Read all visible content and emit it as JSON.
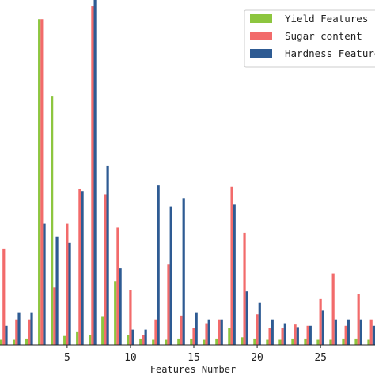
{
  "chart_data": {
    "type": "bar",
    "xlabel": "Features Number",
    "ylabel": "",
    "xlim": [
      -0.3,
      29.3
    ],
    "ylim": [
      0,
      27
    ],
    "xticks": [
      5,
      10,
      15,
      20,
      25
    ],
    "legend": {
      "placement": "top-right"
    },
    "grid": false,
    "series": [
      {
        "name": "Yield Features",
        "color": "#8dc63f",
        "x": [
          0,
          1,
          2,
          3,
          4,
          5,
          6,
          7,
          8,
          9,
          10,
          11,
          12,
          13,
          14,
          15,
          16,
          17,
          18,
          19,
          20,
          21,
          22,
          23,
          24,
          25,
          26,
          27,
          28,
          29
        ],
        "values": [
          0.4,
          0.4,
          0.5,
          25.5,
          19.5,
          0.7,
          1.0,
          0.8,
          2.2,
          5.0,
          0.8,
          0.5,
          0.4,
          0.4,
          0.5,
          0.5,
          0.4,
          0.5,
          1.3,
          0.6,
          0.5,
          0.4,
          0.4,
          0.5,
          0.5,
          0.4,
          0.4,
          0.5,
          0.5,
          0.4
        ]
      },
      {
        "name": "Sugar content",
        "color": "#f26b6b",
        "x": [
          0,
          1,
          2,
          3,
          4,
          5,
          6,
          7,
          8,
          9,
          10,
          11,
          12,
          13,
          14,
          15,
          16,
          17,
          18,
          19,
          20,
          21,
          22,
          23,
          24,
          25,
          26,
          27,
          28,
          29
        ],
        "values": [
          7.5,
          2.0,
          2.0,
          25.5,
          4.5,
          9.5,
          12.2,
          26.5,
          11.8,
          9.2,
          4.3,
          0.8,
          2.0,
          6.3,
          2.3,
          1.3,
          1.7,
          2.0,
          12.4,
          8.8,
          2.4,
          1.3,
          1.3,
          1.6,
          1.5,
          3.6,
          5.6,
          1.5,
          4.0,
          2.0
        ]
      },
      {
        "name": "Hardness Features",
        "color": "#2e5b93",
        "x": [
          0,
          1,
          2,
          3,
          4,
          5,
          6,
          7,
          8,
          9,
          10,
          11,
          12,
          13,
          14,
          15,
          16,
          17,
          18,
          19,
          20,
          21,
          22,
          23,
          24,
          25,
          26,
          27,
          28,
          29
        ],
        "values": [
          1.5,
          2.5,
          2.5,
          9.5,
          8.5,
          8.0,
          12.0,
          27.0,
          14.0,
          6.0,
          1.2,
          1.2,
          12.5,
          10.8,
          11.5,
          2.5,
          2.0,
          2.0,
          11.0,
          4.2,
          3.3,
          2.0,
          1.7,
          1.4,
          1.5,
          2.7,
          2.0,
          2.0,
          2.0,
          1.5
        ]
      }
    ]
  }
}
